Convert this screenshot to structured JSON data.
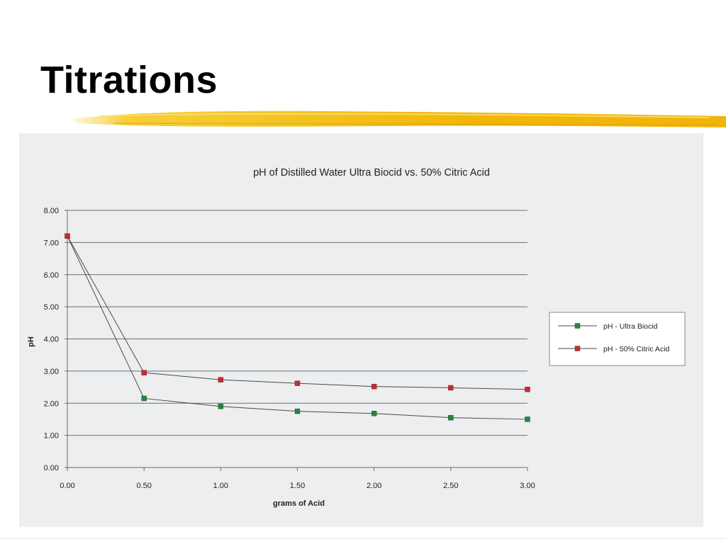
{
  "slide": {
    "title": "Titrations"
  },
  "chart_data": {
    "type": "line",
    "title": "pH of Distilled Water Ultra Biocid vs. 50% Citric Acid",
    "xlabel": "grams of Acid",
    "ylabel": "pH",
    "x": [
      0.0,
      0.5,
      1.0,
      1.5,
      2.0,
      2.5,
      3.0
    ],
    "x_tick_labels": [
      "0.00",
      "0.50",
      "1.00",
      "1.50",
      "2.00",
      "2.50",
      "3.00"
    ],
    "y_tick_labels": [
      "0.00",
      "1.00",
      "2.00",
      "3.00",
      "4.00",
      "5.00",
      "6.00",
      "7.00",
      "8.00"
    ],
    "xlim": [
      0,
      3
    ],
    "ylim": [
      0,
      8
    ],
    "grid": "horizontal",
    "legend_position": "right",
    "series": [
      {
        "name": "pH - Ultra Biocid",
        "color": "#1f8a3a",
        "values": [
          7.2,
          2.15,
          1.9,
          1.75,
          1.68,
          1.55,
          1.5
        ]
      },
      {
        "name": "pH - 50% Citric Acid",
        "color": "#cc2a2a",
        "values": [
          7.2,
          2.95,
          2.73,
          2.62,
          2.52,
          2.48,
          2.43
        ]
      }
    ]
  }
}
